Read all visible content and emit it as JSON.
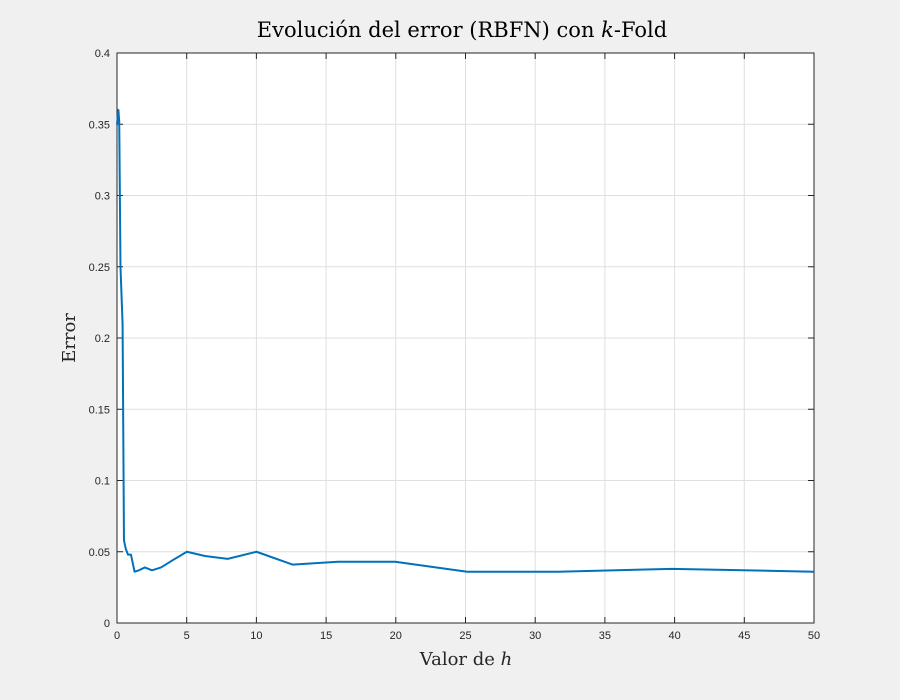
{
  "chart_data": {
    "type": "line",
    "title": "Evolución del error (RBFN) con k-Fold",
    "title_parts": {
      "before": "Evolución del error (RBFN) con ",
      "var": "k",
      "after": "-Fold"
    },
    "xlabel": "Valor de h",
    "xlabel_parts": {
      "before": "Valor de ",
      "var": "h"
    },
    "ylabel": "Error",
    "xlim": [
      0,
      50
    ],
    "ylim": [
      0,
      0.4
    ],
    "x_ticks": [
      0,
      5,
      10,
      15,
      20,
      25,
      30,
      35,
      40,
      45,
      50
    ],
    "y_ticks": [
      0,
      0.05,
      0.1,
      0.15,
      0.2,
      0.25,
      0.3,
      0.35,
      0.4
    ],
    "y_tick_labels": [
      "0",
      "0.05",
      "0.1",
      "0.15",
      "0.2",
      "0.25",
      "0.3",
      "0.35",
      "0.4"
    ],
    "grid": true,
    "series": [
      {
        "color": "#0072bd",
        "x": [
          0,
          0.1,
          0.16,
          0.25,
          0.4,
          0.5,
          0.63,
          0.79,
          1.0,
          1.26,
          1.58,
          2.0,
          2.51,
          3.16,
          3.98,
          5.01,
          6.31,
          7.94,
          10.0,
          12.59,
          15.85,
          19.95,
          25.12,
          31.62,
          39.81,
          50.0
        ],
        "y": [
          0.35,
          0.36,
          0.352,
          0.25,
          0.21,
          0.058,
          0.052,
          0.048,
          0.048,
          0.036,
          0.037,
          0.039,
          0.037,
          0.039,
          0.044,
          0.05,
          0.047,
          0.045,
          0.05,
          0.041,
          0.043,
          0.043,
          0.036,
          0.036,
          0.038,
          0.036
        ]
      }
    ]
  }
}
